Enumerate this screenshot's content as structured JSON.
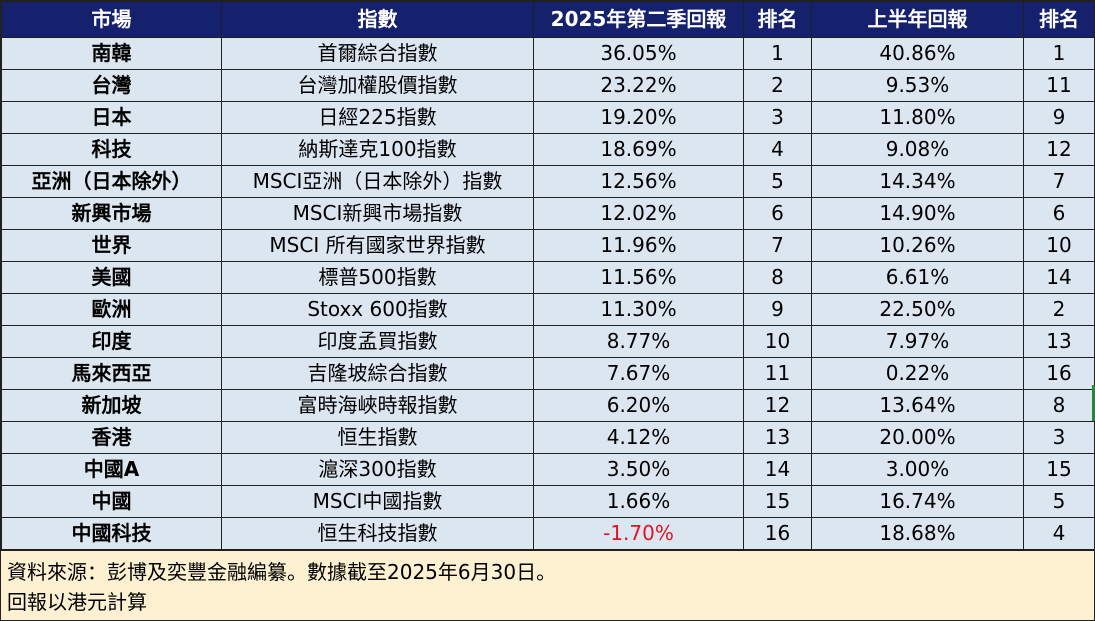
{
  "header": {
    "market": "市場",
    "index": "指數",
    "q2_return": "2025年第二季回報",
    "q2_rank": "排名",
    "h1_return": "上半年回報",
    "h1_rank": "排名"
  },
  "rows": [
    {
      "market": "南韓",
      "index": "首爾綜合指數",
      "q2_return": "36.05%",
      "q2_rank": "1",
      "h1_return": "40.86%",
      "h1_rank": "1"
    },
    {
      "market": "台灣",
      "index": "台灣加權股價指數",
      "q2_return": "23.22%",
      "q2_rank": "2",
      "h1_return": "9.53%",
      "h1_rank": "11"
    },
    {
      "market": "日本",
      "index": "日經225指數",
      "q2_return": "19.20%",
      "q2_rank": "3",
      "h1_return": "11.80%",
      "h1_rank": "9"
    },
    {
      "market": "科技",
      "index": "納斯達克100指數",
      "q2_return": "18.69%",
      "q2_rank": "4",
      "h1_return": "9.08%",
      "h1_rank": "12"
    },
    {
      "market": "亞洲（日本除外）",
      "index": "MSCI亞洲（日本除外）指數",
      "q2_return": "12.56%",
      "q2_rank": "5",
      "h1_return": "14.34%",
      "h1_rank": "7"
    },
    {
      "market": "新興市場",
      "index": "MSCI新興市場指數",
      "q2_return": "12.02%",
      "q2_rank": "6",
      "h1_return": "14.90%",
      "h1_rank": "6"
    },
    {
      "market": "世界",
      "index": "MSCI 所有國家世界指數",
      "q2_return": "11.96%",
      "q2_rank": "7",
      "h1_return": "10.26%",
      "h1_rank": "10"
    },
    {
      "market": "美國",
      "index": "標普500指數",
      "q2_return": "11.56%",
      "q2_rank": "8",
      "h1_return": "6.61%",
      "h1_rank": "14"
    },
    {
      "market": "歐洲",
      "index": "Stoxx 600指數",
      "q2_return": "11.30%",
      "q2_rank": "9",
      "h1_return": "22.50%",
      "h1_rank": "2"
    },
    {
      "market": "印度",
      "index": "印度孟買指數",
      "q2_return": "8.77%",
      "q2_rank": "10",
      "h1_return": "7.97%",
      "h1_rank": "13"
    },
    {
      "market": "馬來西亞",
      "index": "吉隆坡綜合指數",
      "q2_return": "7.67%",
      "q2_rank": "11",
      "h1_return": "0.22%",
      "h1_rank": "16"
    },
    {
      "market": "新加坡",
      "index": "富時海峽時報指數",
      "q2_return": "6.20%",
      "q2_rank": "12",
      "h1_return": "13.64%",
      "h1_rank": "8"
    },
    {
      "market": "香港",
      "index": "恒生指數",
      "q2_return": "4.12%",
      "q2_rank": "13",
      "h1_return": "20.00%",
      "h1_rank": "3"
    },
    {
      "market": "中國A",
      "index": "滬深300指數",
      "q2_return": "3.50%",
      "q2_rank": "14",
      "h1_return": "3.00%",
      "h1_rank": "15"
    },
    {
      "market": "中國",
      "index": "MSCI中國指數",
      "q2_return": "1.66%",
      "q2_rank": "15",
      "h1_return": "16.74%",
      "h1_rank": "5"
    },
    {
      "market": "中國科技",
      "index": "恒生科技指數",
      "q2_return": "-1.70%",
      "q2_rank": "16",
      "h1_return": "18.68%",
      "h1_rank": "4"
    }
  ],
  "footer": {
    "source": "資料來源：彭博及奕豐金融編纂。數據截至2025年6月30日。",
    "note": "回報以港元計算"
  },
  "colors": {
    "header_bg": "#16216e",
    "row_bg": "#dce6f1",
    "footer_bg": "#fdf1d2",
    "negative": "#e0141e"
  }
}
